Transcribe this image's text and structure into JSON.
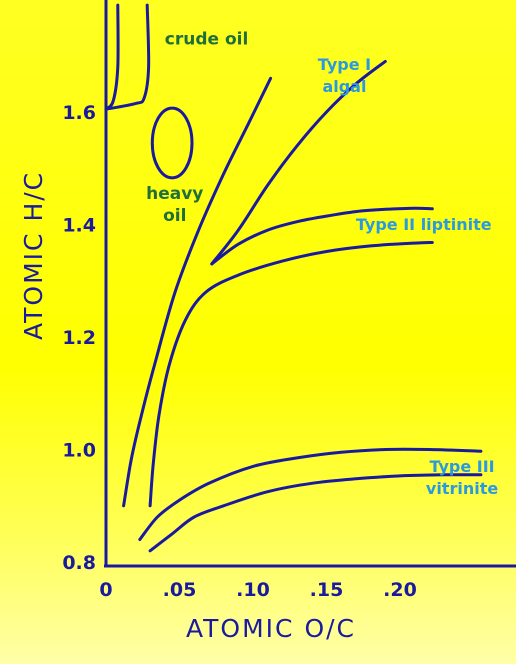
{
  "chart_data": {
    "type": "line",
    "xlabel": "ATOMIC O/C",
    "ylabel": "ATOMIC H/C",
    "xlim": [
      0,
      0.27
    ],
    "ylim": [
      0.8,
      1.78
    ],
    "x_ticks": [
      {
        "value": 0,
        "label": "0"
      },
      {
        "value": 0.05,
        "label": ".05"
      },
      {
        "value": 0.1,
        "label": ".10"
      },
      {
        "value": 0.15,
        "label": ".15"
      },
      {
        "value": 0.2,
        "label": ".20"
      }
    ],
    "y_ticks": [
      {
        "value": 0.8,
        "label": "0.8"
      },
      {
        "value": 1.0,
        "label": "1.0"
      },
      {
        "value": 1.2,
        "label": "1.2"
      },
      {
        "value": 1.4,
        "label": "1.4"
      },
      {
        "value": 1.6,
        "label": "1.6"
      }
    ],
    "series": [
      {
        "outer": [
          [
            0.012,
            0.9
          ],
          [
            0.017,
            0.98
          ],
          [
            0.024,
            1.06
          ],
          [
            0.034,
            1.16
          ],
          [
            0.047,
            1.28
          ],
          [
            0.063,
            1.39
          ],
          [
            0.08,
            1.49
          ],
          [
            0.097,
            1.58
          ],
          [
            0.112,
            1.66
          ]
        ],
        "inner": [
          [
            0.072,
            1.33
          ],
          [
            0.09,
            1.39
          ],
          [
            0.11,
            1.47
          ],
          [
            0.13,
            1.54
          ],
          [
            0.15,
            1.6
          ],
          [
            0.17,
            1.65
          ],
          [
            0.19,
            1.69
          ]
        ]
      },
      {
        "upper": [
          [
            0.072,
            1.33
          ],
          [
            0.09,
            1.365
          ],
          [
            0.11,
            1.39
          ],
          [
            0.13,
            1.405
          ],
          [
            0.15,
            1.415
          ],
          [
            0.17,
            1.423
          ],
          [
            0.19,
            1.427
          ],
          [
            0.21,
            1.429
          ],
          [
            0.222,
            1.428
          ]
        ],
        "lower": [
          [
            0.03,
            0.9
          ],
          [
            0.032,
            0.97
          ],
          [
            0.036,
            1.06
          ],
          [
            0.043,
            1.15
          ],
          [
            0.054,
            1.23
          ],
          [
            0.068,
            1.28
          ],
          [
            0.09,
            1.31
          ],
          [
            0.12,
            1.335
          ],
          [
            0.15,
            1.352
          ],
          [
            0.18,
            1.362
          ],
          [
            0.21,
            1.367
          ],
          [
            0.222,
            1.368
          ]
        ]
      },
      {
        "upper": [
          [
            0.023,
            0.84
          ],
          [
            0.035,
            0.88
          ],
          [
            0.05,
            0.91
          ],
          [
            0.07,
            0.94
          ],
          [
            0.1,
            0.97
          ],
          [
            0.13,
            0.985
          ],
          [
            0.16,
            0.995
          ],
          [
            0.19,
            1.0
          ],
          [
            0.22,
            1.0
          ],
          [
            0.255,
            0.997
          ]
        ],
        "lower": [
          [
            0.03,
            0.82
          ],
          [
            0.045,
            0.85
          ],
          [
            0.06,
            0.88
          ],
          [
            0.08,
            0.9
          ],
          [
            0.11,
            0.925
          ],
          [
            0.14,
            0.94
          ],
          [
            0.17,
            0.948
          ],
          [
            0.2,
            0.953
          ],
          [
            0.23,
            0.955
          ],
          [
            0.255,
            0.955
          ]
        ]
      }
    ],
    "crude_oil": [
      [
        0.008,
        1.79
      ],
      [
        0.008,
        1.68
      ],
      [
        0.005,
        1.62
      ],
      [
        0.0,
        1.605
      ]
    ],
    "crude_oil_right": [
      [
        0.028,
        1.79
      ],
      [
        0.029,
        1.68
      ],
      [
        0.026,
        1.625
      ],
      [
        0.02,
        1.615
      ],
      [
        0.0,
        1.605
      ]
    ],
    "heavy_oil_ellipse": {
      "cx": 0.045,
      "cy": 1.545,
      "rx": 0.0135,
      "ry": 0.062
    },
    "annotations": [
      {
        "lines": [
          "crude  oil"
        ],
        "x": 0.04,
        "y": 1.72,
        "color": "green"
      },
      {
        "lines": [
          "heavy",
          "oil"
        ],
        "x": 0.025,
        "y": 1.445,
        "color": "green"
      },
      {
        "lines": [
          "Type  I",
          "algal"
        ],
        "x": 0.135,
        "y": 1.675,
        "color": "blue"
      },
      {
        "lines": [
          "Type  II  liptinite"
        ],
        "x": 0.17,
        "y": 1.39,
        "color": "blue"
      },
      {
        "lines": [
          "Type  III",
          "vitrinite"
        ],
        "x": 0.215,
        "y": 0.96,
        "color": "blue"
      }
    ]
  }
}
